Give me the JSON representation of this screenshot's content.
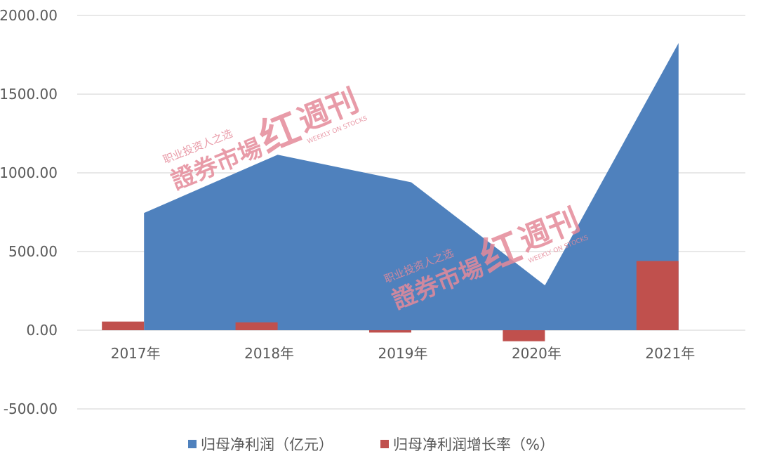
{
  "chart_data": {
    "type": "area",
    "categories": [
      "2017年",
      "2018年",
      "2019年",
      "2020年",
      "2021年"
    ],
    "series": [
      {
        "name": "归母净利润（亿元）",
        "type": "area",
        "color": "#4f81bd",
        "values": [
          745,
          1115,
          940,
          285,
          1825
        ]
      },
      {
        "name": "归母净利润增长率（%）",
        "type": "bar",
        "color": "#c0504d",
        "values": [
          55,
          50,
          -15,
          -70,
          440
        ]
      }
    ],
    "ylim": [
      -500,
      2000
    ],
    "yticks": [
      "2000.00",
      "1500.00",
      "1000.00",
      "500.00",
      "0.00",
      "-500.00"
    ],
    "ytick_values": [
      2000,
      1500,
      1000,
      500,
      0,
      -500
    ],
    "grid": true,
    "legend_position": "bottom"
  },
  "watermark": {
    "tagline": "职业投资人之选",
    "brand": "證券市場",
    "logo": "红",
    "periodical": "週刊",
    "english": "WEEKLY ON STOCKS"
  }
}
